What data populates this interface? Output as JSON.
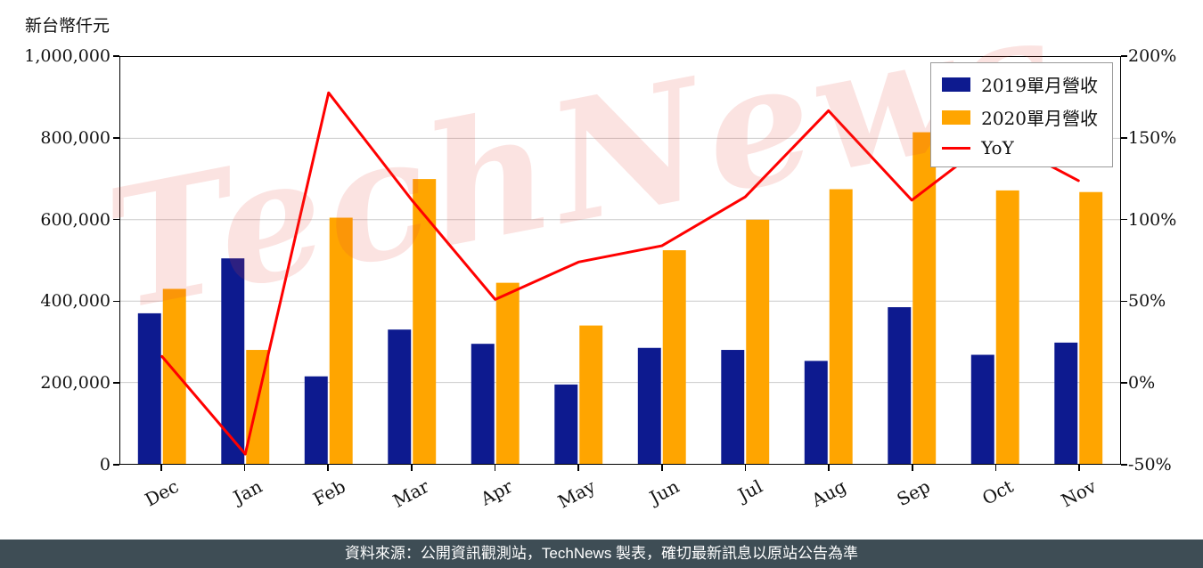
{
  "page": {
    "unit_label": "新台幣仟元",
    "watermark": "TechNews",
    "footer": "資料來源：公開資訊觀測站，TechNews 製表，確切最新訊息以原站公告為準"
  },
  "chart_data": {
    "type": "bar",
    "subtype": "grouped-bars-with-line",
    "categories": [
      "Dec",
      "Jan",
      "Feb",
      "Mar",
      "Apr",
      "May",
      "Jun",
      "Jul",
      "Aug",
      "Sep",
      "Oct",
      "Nov"
    ],
    "series": [
      {
        "name": "2019單月營收",
        "type": "bar",
        "axis": "left",
        "color": "#0d1a8f",
        "values": [
          370000,
          505000,
          215000,
          330000,
          295000,
          195000,
          285000,
          280000,
          253000,
          385000,
          268000,
          298000
        ]
      },
      {
        "name": "2020單月營收",
        "type": "bar",
        "axis": "left",
        "color": "#ffa500",
        "values": [
          430000,
          280000,
          605000,
          700000,
          445000,
          340000,
          525000,
          600000,
          675000,
          815000,
          672000,
          668000
        ]
      },
      {
        "name": "YoY",
        "type": "line",
        "axis": "right",
        "color": "#ff0000",
        "values_percent": [
          16,
          -44,
          178,
          112,
          51,
          74,
          84,
          114,
          167,
          112,
          151,
          124
        ]
      }
    ],
    "left_axis": {
      "min": 0,
      "max": 1000000,
      "tick_step": 200000,
      "tick_labels": [
        "0",
        "200,000",
        "400,000",
        "600,000",
        "800,000",
        "1,000,000"
      ]
    },
    "right_axis": {
      "min": -50,
      "max": 200,
      "tick_step": 50,
      "tick_labels": [
        "-50%",
        "0%",
        "50%",
        "100%",
        "150%",
        "200%"
      ]
    },
    "grid": true,
    "legend_position": "top-right"
  }
}
